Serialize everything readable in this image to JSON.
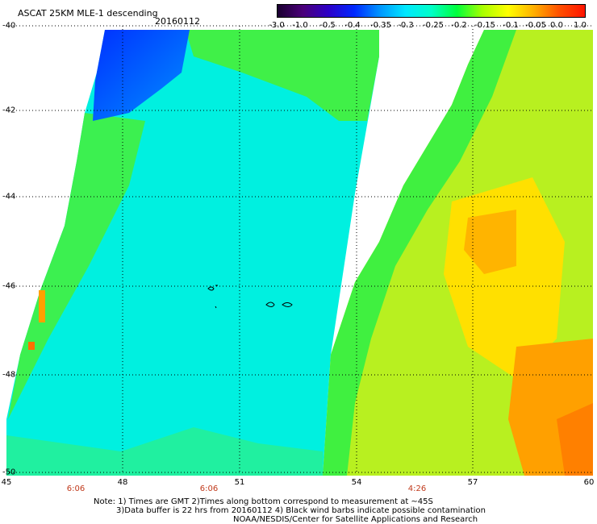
{
  "header": {
    "title": "ASCAT 25KM MLE-1 descending",
    "date": "20160112"
  },
  "colorbar": {
    "labels": [
      "-3.0",
      "-1.0",
      "-0.5",
      "-0.4",
      "-0.35",
      "-0.3",
      "-0.25",
      "-0.2",
      "-0.15",
      "-0.1",
      "-0.05",
      "0.0",
      "1.0"
    ],
    "colors": [
      "#1a0030",
      "#4b007a",
      "#2c00c8",
      "#0028ff",
      "#0096ff",
      "#00e8ff",
      "#00ffc8",
      "#00ff3c",
      "#a8ff00",
      "#ffff00",
      "#ffb000",
      "#ff5000",
      "#ff1400"
    ]
  },
  "axes": {
    "lat_labels": [
      "-40",
      "-42",
      "-44",
      "-46",
      "-48",
      "-50"
    ],
    "lon_labels": [
      "45",
      "48",
      "51",
      "54",
      "57",
      "60"
    ]
  },
  "times": [
    "6:06",
    "6:06",
    "4:26"
  ],
  "notes": {
    "line1": "Note: 1) Times are GMT 2)Times along bottom correspond to measurement at ~45S",
    "line2": "3)Data buffer is 22 hrs from 20160112 4) Black wind barbs indicate possible contamination",
    "line3": "NOAA/NESDIS/Center for Satellite Applications and Research"
  }
}
